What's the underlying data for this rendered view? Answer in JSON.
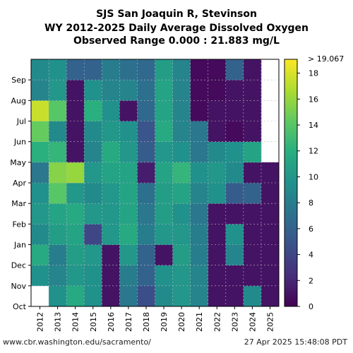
{
  "chart_data": {
    "type": "heatmap",
    "title_lines": [
      "SJS San Joaquin R, Stevinson",
      "WY 2012-2025 Daily Average Dissolved Oxygen",
      "Observed Range 0.000 : 21.883 mg/L"
    ],
    "x_categories": [
      "2012",
      "2013",
      "2014",
      "2015",
      "2016",
      "2017",
      "2018",
      "2019",
      "2020",
      "2021",
      "2022",
      "2023",
      "2024",
      "2025"
    ],
    "y_months": [
      "Oct",
      "Nov",
      "Dec",
      "Jan",
      "Feb",
      "Mar",
      "Apr",
      "May",
      "Jun",
      "Jul",
      "Aug",
      "Sep"
    ],
    "colorbar": {
      "min": 0,
      "max": 19.067,
      "ticks": [
        0,
        2,
        4,
        6,
        8,
        10,
        12,
        14,
        16,
        18
      ],
      "top_label": "> 19.067",
      "colormap": "viridis"
    },
    "observed_range_mg_l": [
      0.0,
      21.883
    ],
    "grid": true,
    "monthly_values": [
      [
        null,
        9.5,
        11.5,
        9.0,
        10.0,
        9.5,
        7.5,
        12.0,
        14.5,
        17.5,
        8.5,
        9.0
      ],
      [
        9.5,
        8.5,
        8.0,
        10.5,
        11.0,
        14.0,
        15.5,
        12.5,
        9.0,
        14.0,
        10.0,
        9.5
      ],
      [
        11.5,
        10.0,
        10.5,
        11.0,
        11.5,
        10.0,
        16.0,
        1.0,
        1.0,
        1.0,
        1.0,
        6.0
      ],
      [
        9.5,
        9.5,
        10.0,
        4.0,
        10.0,
        9.0,
        10.0,
        8.5,
        9.0,
        12.0,
        9.5,
        6.0
      ],
      [
        1.0,
        1.0,
        1.0,
        10.0,
        10.0,
        10.0,
        11.0,
        11.5,
        10.0,
        9.5,
        8.5,
        8.0
      ],
      [
        7.5,
        8.0,
        10.0,
        11.5,
        11.0,
        11.0,
        11.0,
        10.0,
        9.5,
        1.0,
        8.5,
        7.0
      ],
      [
        4.5,
        6.0,
        6.0,
        8.0,
        7.5,
        7.0,
        1.5,
        5.5,
        5.0,
        6.5,
        7.0,
        6.5
      ],
      [
        9.0,
        9.5,
        1.0,
        10.0,
        10.5,
        10.5,
        11.0,
        10.0,
        11.5,
        11.0,
        11.0,
        10.5
      ],
      [
        10.0,
        10.0,
        10.5,
        10.0,
        9.5,
        11.0,
        12.5,
        9.5,
        8.5,
        8.5,
        8.5,
        8.5
      ],
      [
        8.5,
        8.5,
        8.0,
        8.0,
        7.5,
        8.5,
        9.5,
        7.5,
        7.5,
        0.5,
        0.5,
        0.5
      ],
      [
        1.0,
        1.0,
        1.0,
        1.0,
        1.0,
        9.5,
        10.0,
        9.0,
        1.0,
        1.0,
        0.5,
        0.5
      ],
      [
        1.0,
        1.0,
        8.5,
        9.5,
        1.0,
        5.5,
        9.0,
        9.5,
        0.5,
        1.0,
        1.0,
        6.0
      ],
      [
        9.0,
        1.0,
        1.0,
        1.0,
        1.0,
        6.0,
        1.0,
        11.0,
        1.0,
        1.0,
        1.0,
        1.0
      ],
      [
        1.0,
        1.0,
        1.0,
        1.0,
        1.0,
        1.0,
        1.0,
        null,
        null,
        null,
        null,
        null
      ]
    ]
  },
  "footer": {
    "url": "www.cbr.washington.edu/sacramento/",
    "timestamp": "27 Apr 2025 15:48:08 PDT"
  }
}
